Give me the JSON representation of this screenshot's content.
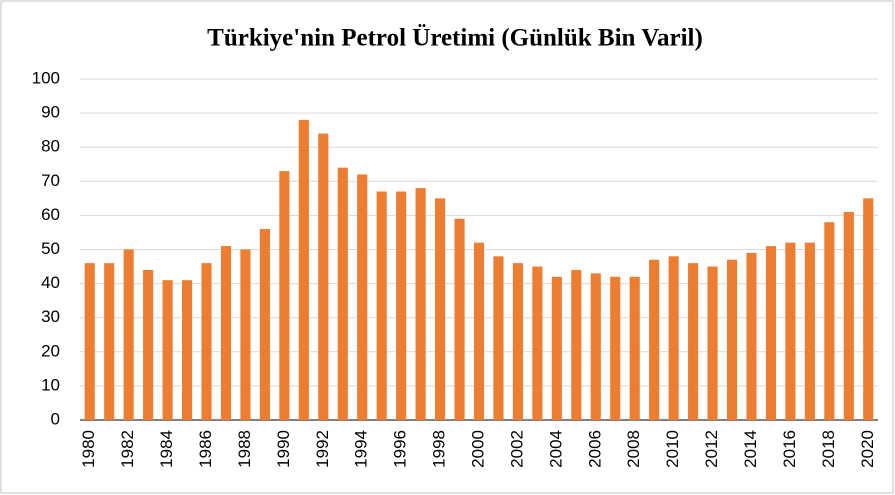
{
  "chart_data": {
    "type": "bar",
    "title": "Türkiye'nin Petrol Üretimi (Günlük Bin Varil)",
    "categories": [
      "1980",
      null,
      "1982",
      null,
      "1984",
      null,
      "1986",
      null,
      "1988",
      null,
      "1990",
      null,
      "1992",
      null,
      "1994",
      null,
      "1996",
      null,
      "1998",
      null,
      "2000",
      null,
      "2002",
      null,
      "2004",
      null,
      "2006",
      null,
      "2008",
      null,
      "2010",
      null,
      "2012",
      null,
      "2014",
      null,
      "2016",
      null,
      "2018",
      null,
      "2020"
    ],
    "values": [
      46,
      46,
      50,
      44,
      41,
      41,
      46,
      51,
      50,
      56,
      73,
      88,
      84,
      74,
      72,
      67,
      67,
      68,
      65,
      59,
      52,
      48,
      46,
      45,
      42,
      44,
      43,
      42,
      42,
      47,
      48,
      46,
      45,
      47,
      49,
      51,
      52,
      52,
      58,
      61,
      65
    ],
    "color": "#ed7d31",
    "ylim": [
      0,
      100
    ],
    "yticks": [
      0,
      10,
      20,
      30,
      40,
      50,
      60,
      70,
      80,
      90,
      100
    ],
    "grid": true
  }
}
